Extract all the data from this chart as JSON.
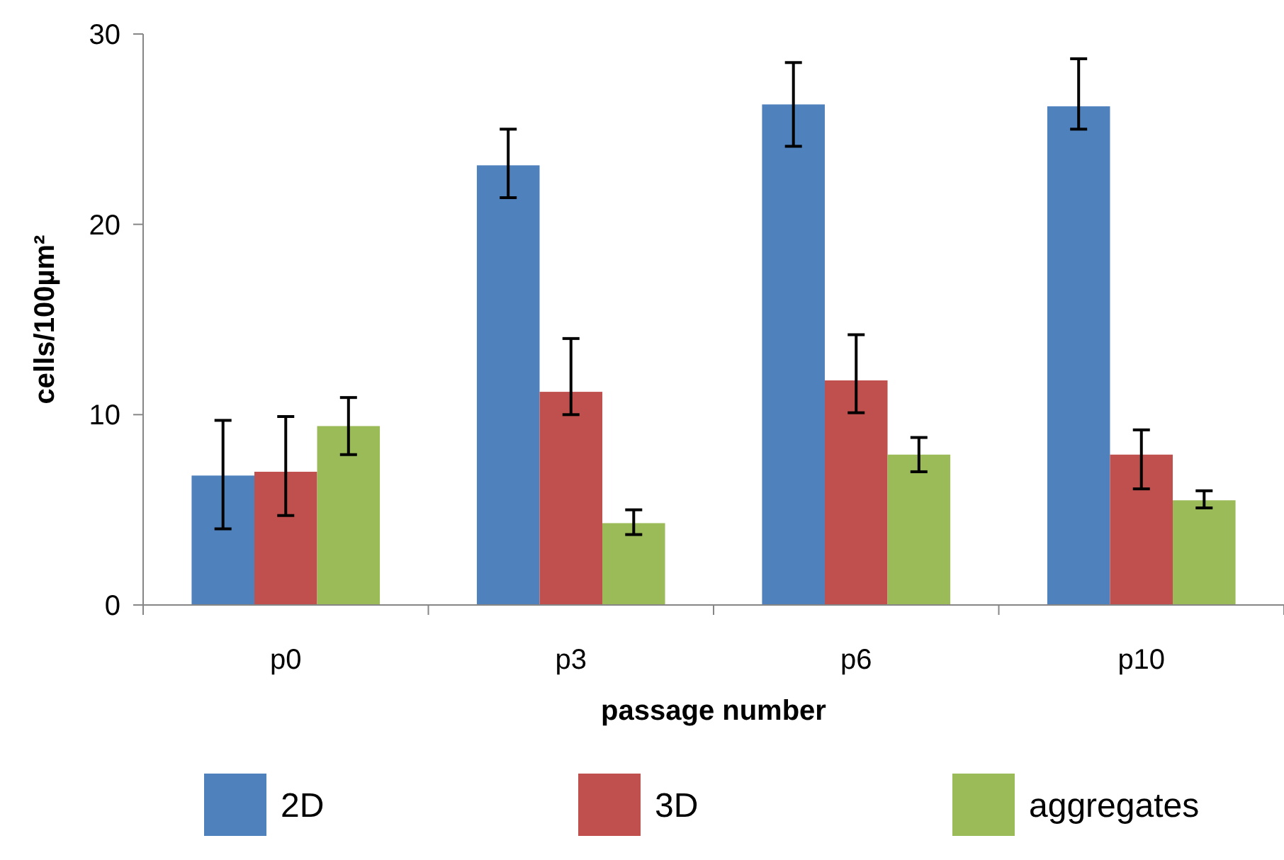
{
  "chart_data": {
    "type": "bar",
    "xlabel": "passage number",
    "ylabel": "cells/100µm²",
    "categories": [
      "p0",
      "p3",
      "p6",
      "p10"
    ],
    "ylim": [
      0,
      30
    ],
    "yticks": [
      0,
      10,
      20,
      30
    ],
    "legend": "bottom",
    "series": [
      {
        "name": "2D",
        "color": "#4f81bd",
        "values": [
          6.8,
          23.1,
          26.3,
          26.2
        ],
        "errors": [
          [
            4.0,
            9.7
          ],
          [
            21.4,
            25.0
          ],
          [
            24.1,
            28.5
          ],
          [
            25.0,
            28.7
          ]
        ]
      },
      {
        "name": "3D",
        "color": "#c0504d",
        "values": [
          7.0,
          11.2,
          11.8,
          7.9
        ],
        "errors": [
          [
            4.7,
            9.9
          ],
          [
            10.0,
            14.0
          ],
          [
            10.1,
            14.2
          ],
          [
            6.1,
            9.2
          ]
        ]
      },
      {
        "name": "aggregates",
        "color": "#9bbb59",
        "values": [
          9.4,
          4.3,
          7.9,
          5.5
        ],
        "errors": [
          [
            7.9,
            10.9
          ],
          [
            3.7,
            5.0
          ],
          [
            7.0,
            8.8
          ],
          [
            5.1,
            6.0
          ]
        ]
      }
    ]
  }
}
